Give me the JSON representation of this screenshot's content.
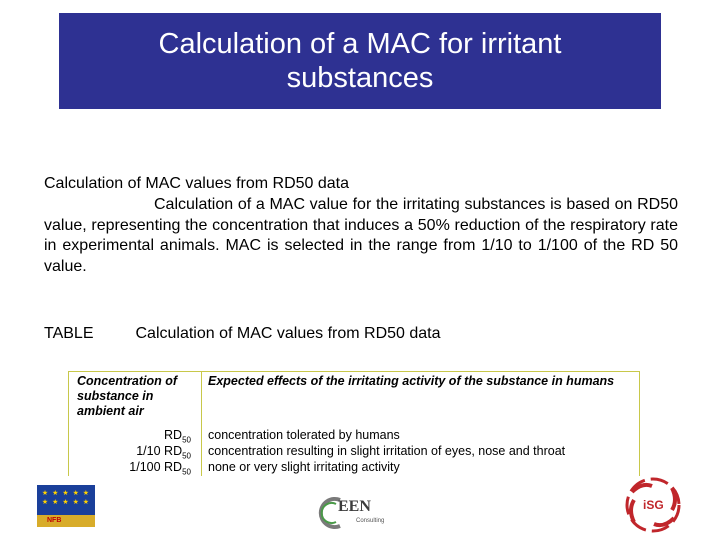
{
  "slide": {
    "title": "Calculation of a MAC for irritant substances",
    "heading": "Calculation of MAC values from RD50 data",
    "paragraph": "Calculation of a MAC value for the irritating substances is based on RD50 value, representing the concentration that induces a 50% reduction of the respiratory rate in experimental animals. MAC is selected in the range from 1/10 to 1/100 of the RD 50 value.",
    "table_label": "TABLE",
    "table_caption": "Calculation of MAC values from RD50 data"
  },
  "table": {
    "header_left": "Concentration of substance in ambient air",
    "header_right": "Expected effects of the irritating activity of the substance in humans",
    "rows": [
      {
        "conc_prefix": "RD",
        "conc_sub": "50",
        "effect": "concentration tolerated by humans"
      },
      {
        "conc_prefix": "1/10 RD",
        "conc_sub": "50",
        "effect": "concentration resulting in slight irritation of eyes, nose and throat"
      },
      {
        "conc_prefix": "1/100 RD",
        "conc_sub": "50",
        "effect": "none or very slight irritating activity"
      }
    ]
  },
  "logos": {
    "eu_label": "NFB",
    "ceen_text": "EEN",
    "ceen_sub": "Consulting",
    "isg_text": "iSG"
  },
  "colors": {
    "title_bg": "#2e3192",
    "title_fg": "#ffffff",
    "table_border": "#c8c84a"
  }
}
